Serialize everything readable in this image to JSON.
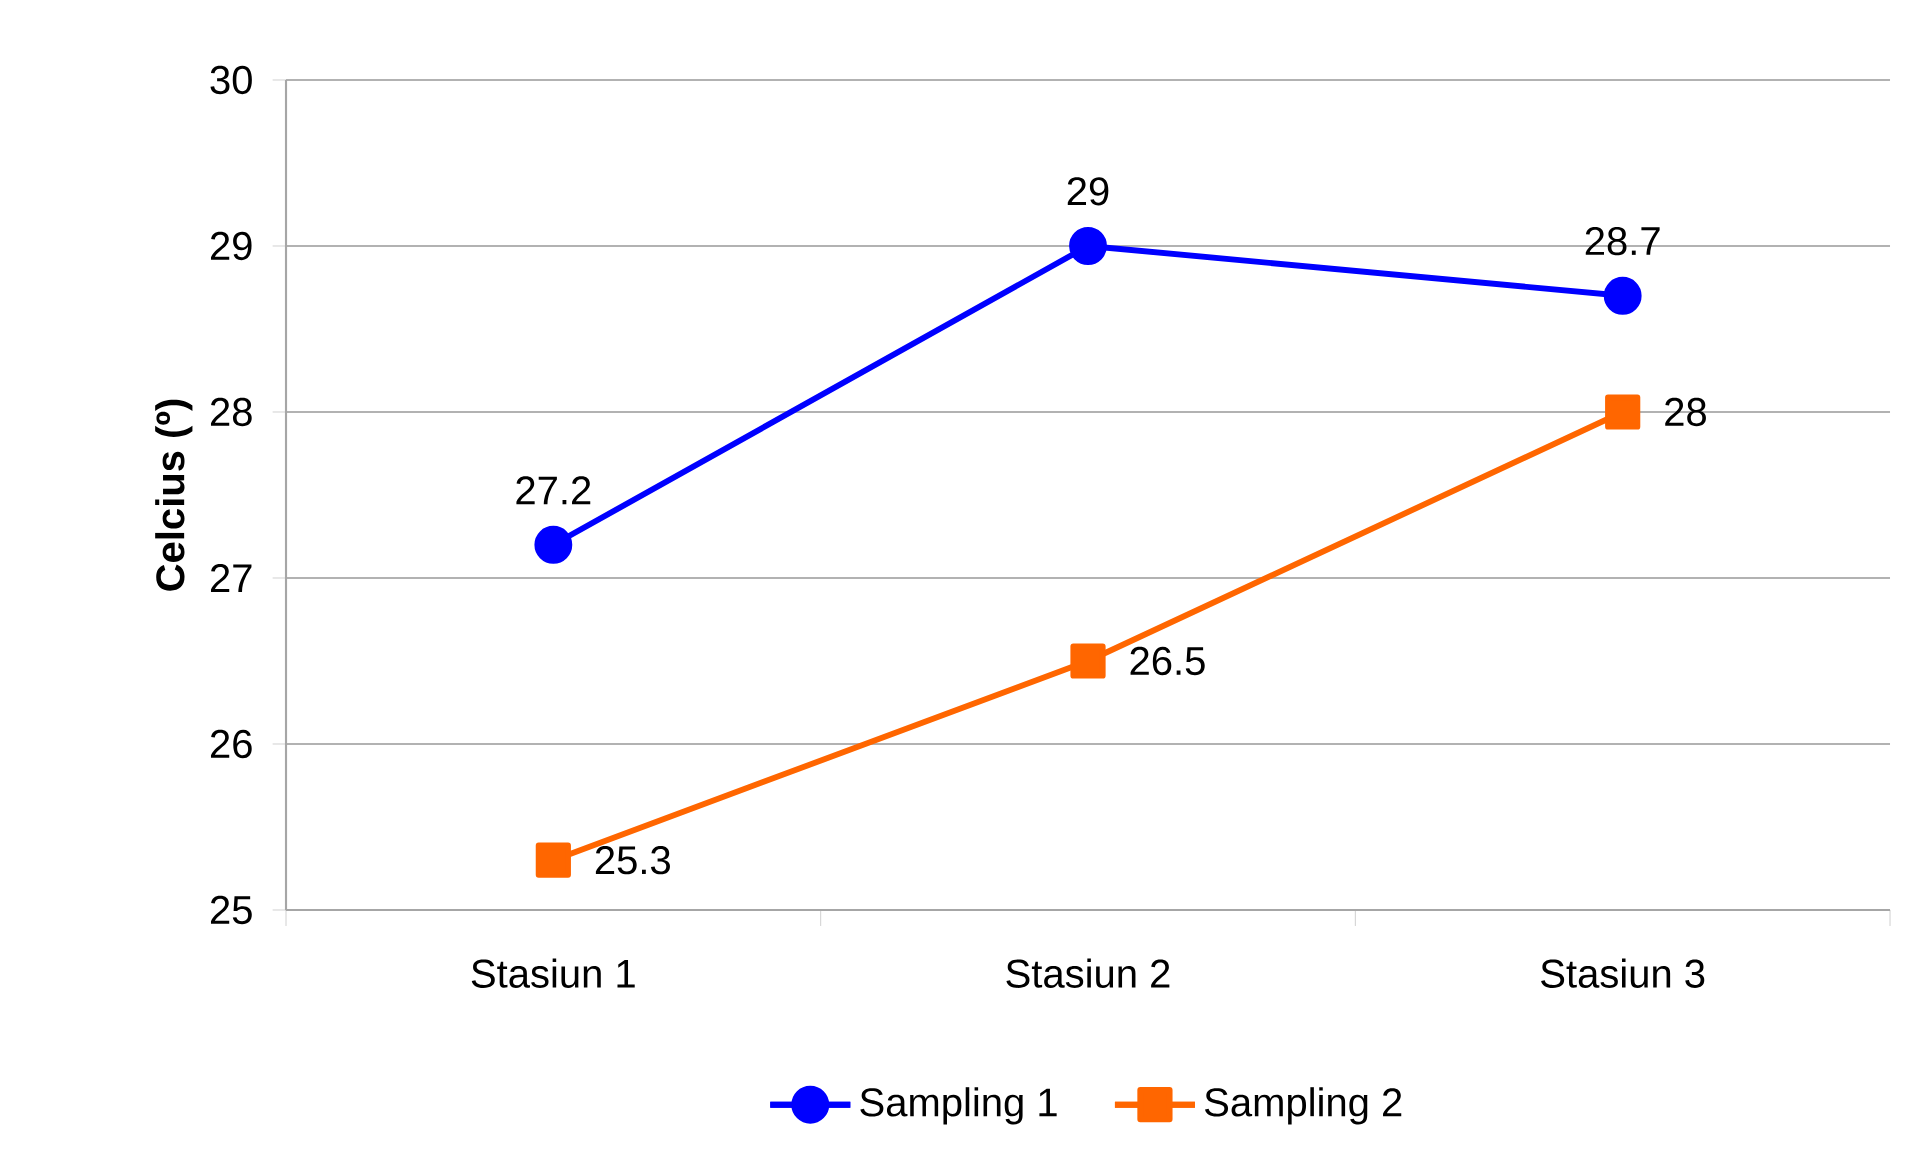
{
  "chart_data": {
    "type": "line",
    "ylabel": "Celcius (º)",
    "categories": [
      "Stasiun 1",
      "Stasiun 2",
      "Stasiun 3"
    ],
    "series": [
      {
        "name": "Sampling 1",
        "color": "#0000ff",
        "marker": "circle",
        "values": [
          27.2,
          29,
          28.7
        ]
      },
      {
        "name": "Sampling 2",
        "color": "#ff6600",
        "marker": "square",
        "values": [
          25.3,
          26.5,
          28
        ]
      }
    ],
    "ylim": [
      25,
      30
    ],
    "yticks": [
      25,
      26,
      27,
      28,
      29,
      30
    ],
    "grid": "y",
    "legend": "bottom",
    "data_labels": true
  }
}
